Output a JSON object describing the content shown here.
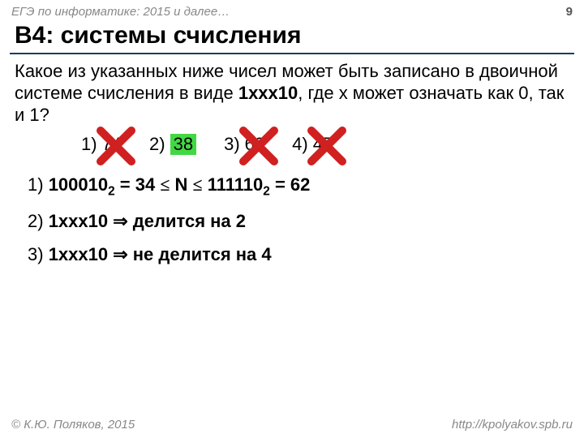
{
  "header": {
    "left": "ЕГЭ по информатике: 2015 и далее…",
    "page": "9"
  },
  "title": "B4: системы счисления",
  "question": {
    "p1": "Какое из указанных ниже чисел может быть записано в двоичной системе счисления в виде ",
    "bold1": "1xxx10",
    "p2": ", где x может означать как 0, так и 1?"
  },
  "options": [
    {
      "label": "1)",
      "value": "74",
      "correct": false
    },
    {
      "label": "2)",
      "value": "38",
      "correct": true
    },
    {
      "label": "3)",
      "value": "60",
      "correct": false
    },
    {
      "label": "4)",
      "value": "47",
      "correct": false
    }
  ],
  "explain": [
    {
      "n": "1)",
      "prefix": "100010",
      "sub1": "2",
      "mid1": " = 34 ",
      "op1": "≤",
      "mid2": " N ",
      "op2": "≤",
      "mid3": " 111110",
      "sub2": "2",
      "tail": " = 62"
    },
    {
      "n": "2)",
      "prefix": "1xxx10 ",
      "arrow": "⇒",
      "tail": " делится на 2"
    },
    {
      "n": "3)",
      "prefix": "1xxx10 ",
      "arrow": "⇒",
      "tail": " не делится на 4"
    }
  ],
  "footer": {
    "left": "© К.Ю. Поляков, 2015",
    "right": "http://kpolyakov.spb.ru"
  },
  "colors": {
    "cross_stroke": "#d02020",
    "correct_bg": "#43d843",
    "hr": "#1a3a6a"
  }
}
